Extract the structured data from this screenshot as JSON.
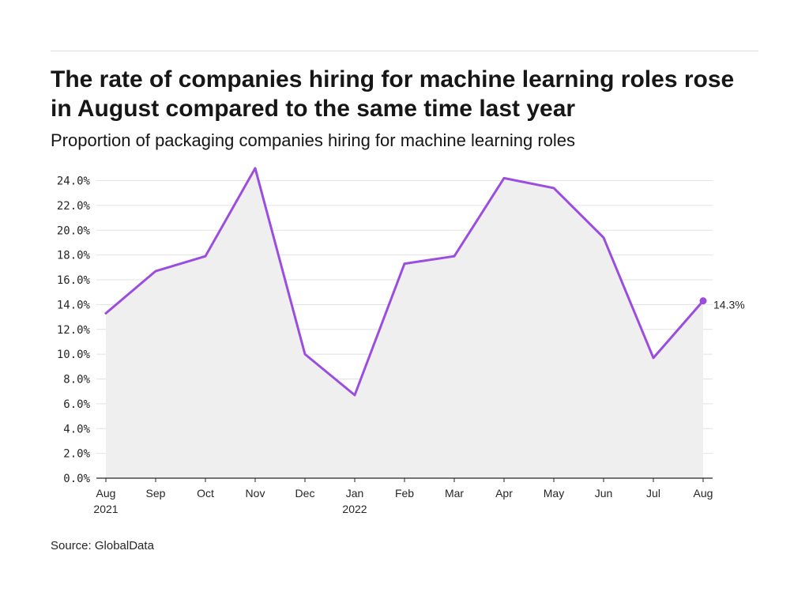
{
  "title": "The rate of companies hiring for machine learning roles rose in August compared to the same time last year",
  "subtitle": "Proportion of packaging companies hiring for machine learning roles",
  "source": "Source: GlobalData",
  "colors": {
    "line": "#9b4de0",
    "area": "#efefef",
    "grid": "#e2e2e2",
    "axis": "#262626"
  },
  "chart_data": {
    "type": "area",
    "x": [
      "Aug 2021",
      "Sep 2021",
      "Oct 2021",
      "Nov 2021",
      "Dec 2021",
      "Jan 2022",
      "Feb 2022",
      "Mar 2022",
      "Apr 2022",
      "May 2022",
      "Jun 2022",
      "Jul 2022",
      "Aug 2022"
    ],
    "x_tick_labels": [
      [
        "Aug",
        "2021"
      ],
      [
        "Sep"
      ],
      [
        "Oct"
      ],
      [
        "Nov"
      ],
      [
        "Dec"
      ],
      [
        "Jan",
        "2022"
      ],
      [
        "Feb"
      ],
      [
        "Mar"
      ],
      [
        "Apr"
      ],
      [
        "May"
      ],
      [
        "Jun"
      ],
      [
        "Jul"
      ],
      [
        "Aug"
      ]
    ],
    "series": [
      {
        "values": [
          13.3,
          16.7,
          17.9,
          25.0,
          10.0,
          6.7,
          17.3,
          17.9,
          24.2,
          23.4,
          19.4,
          9.7,
          14.3
        ]
      }
    ],
    "ylim": [
      0,
      24
    ],
    "yticks": [
      0,
      2,
      4,
      6,
      8,
      10,
      12,
      14,
      16,
      18,
      20,
      22,
      24
    ],
    "ytick_labels": [
      "0.0%",
      "2.0%",
      "4.0%",
      "6.0%",
      "8.0%",
      "10.0%",
      "12.0%",
      "14.0%",
      "16.0%",
      "18.0%",
      "20.0%",
      "22.0%",
      "24.0%"
    ],
    "end_label": "14.3%",
    "grid": true,
    "legend": "none"
  }
}
